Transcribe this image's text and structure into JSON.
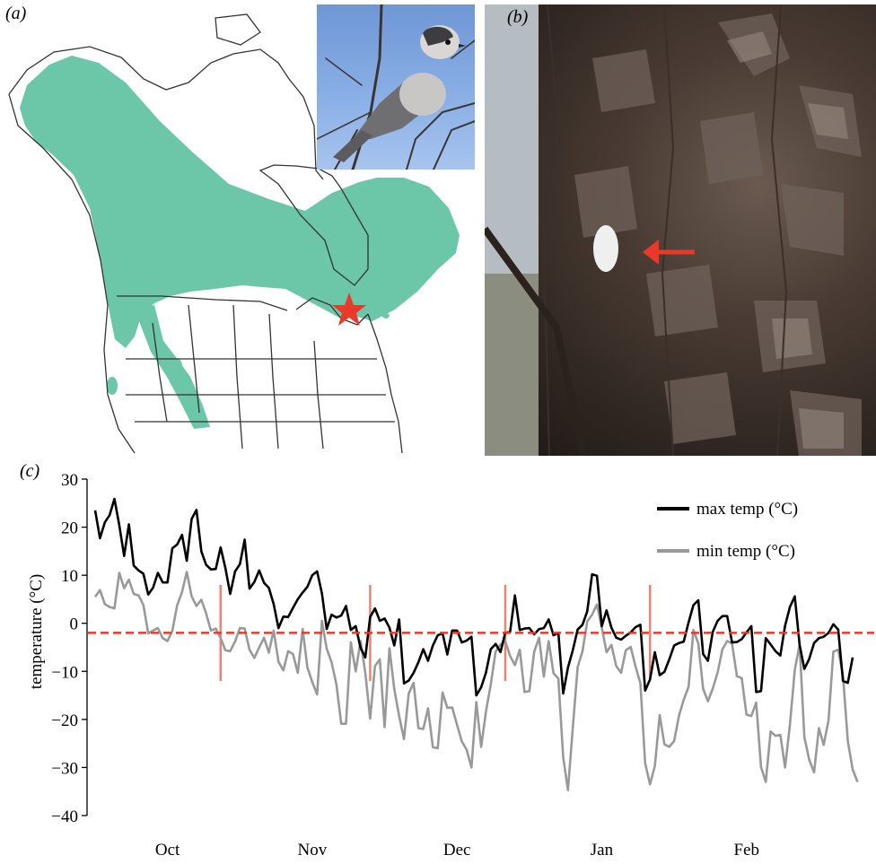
{
  "panels": {
    "a_label": "(a)",
    "b_label": "(b)",
    "c_label": "(c)"
  },
  "colors": {
    "range_fill": "#6cc7a8",
    "star": "#e8392a",
    "arrow": "#e8392a",
    "max_line": "#000000",
    "min_line": "#999999",
    "threshold_line": "#e8392a",
    "month_markers": "#f08070"
  },
  "icons": {
    "star": "star-icon",
    "arrow": "arrow-left-icon"
  },
  "chart_data": {
    "type": "line",
    "ylabel": "temperature (°C)",
    "ylim": [
      -40,
      30
    ],
    "yticks": [
      "30",
      "20",
      "10",
      "0",
      "−10",
      "−20",
      "−30",
      "−40"
    ],
    "xtick_labels": [
      "Oct",
      "Nov",
      "Dec",
      "Jan",
      "Feb"
    ],
    "threshold": -2,
    "marker_days": [
      26,
      57,
      85,
      115
    ],
    "marker_range": [
      -12,
      8
    ],
    "legend_position": "top-right",
    "series": [
      {
        "name": "max temp (°C)",
        "values": [
          23.5,
          17.7,
          21,
          22.5,
          25.9,
          20.4,
          14,
          20.6,
          12,
          11,
          10.3,
          6,
          7.4,
          10.5,
          8.5,
          8.5,
          15.6,
          16.4,
          18.4,
          13,
          21.7,
          23.6,
          15,
          12.2,
          11.2,
          11.3,
          15.8,
          11.5,
          6.1,
          10.8,
          12.3,
          17.4,
          7.2,
          8.6,
          11,
          8.4,
          7.4,
          4,
          -1,
          1.4,
          1.3,
          3.2,
          5,
          6.4,
          7.6,
          10,
          10.8,
          6.2,
          -1.2,
          1.8,
          1.2,
          1.6,
          3.6,
          -1.4,
          -0.6,
          -5.1,
          -7.1,
          1.3,
          3.1,
          0.5,
          1,
          -0.9,
          -4.6,
          0.8,
          -12.5,
          -11.9,
          -10.3,
          -8.1,
          -5.4,
          -7.8,
          -4.6,
          -2.5,
          -2.1,
          -6.5,
          -1.5,
          -1.5,
          -4,
          -3.6,
          -2.8,
          -15,
          -13.3,
          -10.3,
          -5.4,
          -4.3,
          -6,
          -2,
          -1.8,
          5.8,
          -1.4,
          -1.1,
          -1,
          -2.3,
          -1.2,
          -1,
          0.8,
          -2.5,
          -2,
          -14.6,
          -9.2,
          -5.6,
          -1.3,
          -0.3,
          2.5,
          10.2,
          9.9,
          -0.6,
          2.7,
          -0.9,
          -3,
          -3.4,
          -2.6,
          -1.9,
          -0.8,
          -0.3,
          -14,
          -11.7,
          -6,
          -10.8,
          -10.1,
          -7.5,
          -4.6,
          -4.1,
          -3.8,
          0.2,
          3.8,
          4.8,
          -6.4,
          -7.8,
          -1.8,
          0.5,
          1.5,
          1.5,
          -4,
          -3.9,
          -3.3,
          -1.9,
          -0.6,
          -14.3,
          -14.1,
          -3.1,
          -4.4,
          -5.8,
          -6.7,
          -0.5,
          3.4,
          5.6,
          -4.5,
          -9.5,
          -7.4,
          -4.1,
          -3.1,
          -2.8,
          -2,
          -0.2,
          -1.3,
          -12,
          -12.4,
          -7.1
        ]
      },
      {
        "name": "min temp (°C)",
        "values": [
          5.5,
          6.9,
          4,
          3.4,
          3.1,
          10.5,
          7.3,
          9.1,
          6.1,
          5.8,
          3.8,
          -2.1,
          -1.5,
          -1,
          -3.1,
          -3.7,
          -1.6,
          3.8,
          6.5,
          10.7,
          5.6,
          3.6,
          4.9,
          2.1,
          -1.5,
          -1.1,
          -3.1,
          -5.6,
          -5.8,
          -3.8,
          -1,
          -1.1,
          -5.5,
          -7.2,
          -5,
          -3,
          -6.1,
          -1.5,
          -8,
          -9.8,
          -5.8,
          -6.4,
          -10.3,
          -1.2,
          -9.2,
          -12.2,
          -14.8,
          0.5,
          -5.3,
          -8.1,
          -12.7,
          -20.9,
          -20.9,
          -4,
          -10,
          -3.7,
          -10.3,
          -19.8,
          -8.9,
          -7.5,
          -21.6,
          -5.2,
          -13.7,
          -19.3,
          -24.1,
          -14.6,
          -12.4,
          -21.8,
          -22,
          -17.7,
          -25.8,
          -26,
          -14.4,
          -17.6,
          -17.5,
          -21.1,
          -24.6,
          -26.3,
          -30,
          -16.4,
          -25.7,
          -18.4,
          -12.7,
          -5.9,
          -4.4,
          -3.7,
          -6.8,
          -8.7,
          -5.5,
          -14.3,
          -14.1,
          -5.9,
          -3,
          -11.1,
          -3.7,
          -10.4,
          -11.5,
          -27.9,
          -34.7,
          -21.7,
          -9.1,
          -5.8,
          0.4,
          1.8,
          3.9,
          -0.9,
          -6,
          -4.5,
          -8.9,
          -10.3,
          -5.6,
          -4.9,
          -9,
          -12.5,
          -29.1,
          -33.5,
          -29.7,
          -19.1,
          -25.2,
          -25.7,
          -24.5,
          -19.2,
          -15.9,
          -13.2,
          -1.4,
          -4.2,
          -13.6,
          -16.2,
          -13.6,
          -10.3,
          -5.4,
          -3.7,
          -4.2,
          -11,
          -11.4,
          -19,
          -19.3,
          -16.5,
          -29.9,
          -33,
          -22.5,
          -23.4,
          -23.2,
          -30,
          -21.1,
          -9.7,
          -4.4,
          -23.7,
          -28.4,
          -31,
          -21.8,
          -25.3,
          -20.2,
          -5.9,
          -5.5,
          -10.8,
          -24.5,
          -30.4,
          -33
        ]
      }
    ]
  }
}
